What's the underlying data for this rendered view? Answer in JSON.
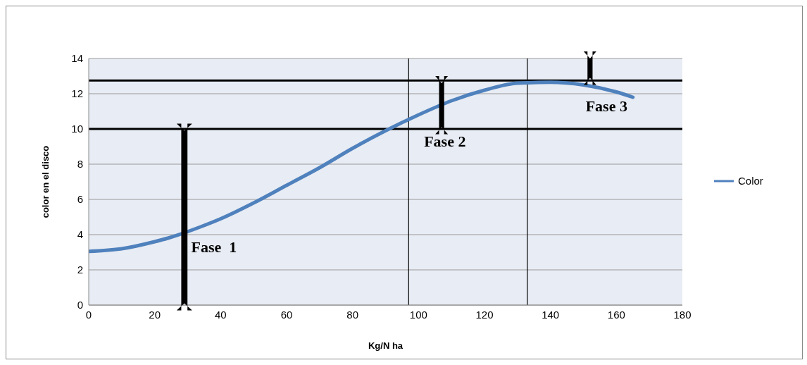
{
  "chart_data": {
    "type": "line",
    "xlabel": "Kg/N ha",
    "ylabel": "color en el disco",
    "x": [
      0,
      10,
      20,
      24,
      34,
      40,
      50,
      60,
      70,
      80,
      90,
      100,
      110,
      120,
      130,
      140,
      150,
      160,
      165
    ],
    "series": [
      {
        "name": "Color",
        "color": "#4f81bd",
        "values": [
          3.05,
          3.2,
          3.6,
          3.8,
          4.45,
          4.9,
          5.8,
          6.8,
          7.8,
          8.9,
          9.9,
          10.8,
          11.6,
          12.2,
          12.6,
          12.65,
          12.5,
          12.1,
          11.8
        ]
      }
    ],
    "xlim": [
      0,
      180
    ],
    "xticks": [
      0,
      20,
      40,
      60,
      80,
      100,
      120,
      140,
      160,
      180
    ],
    "ylim": [
      0,
      14
    ],
    "yticks": [
      0,
      2,
      4,
      6,
      8,
      10,
      12,
      14
    ],
    "grid": "y",
    "legend": "right",
    "marker": "none",
    "line_style": "solid",
    "ref_lines": [
      {
        "axis": "y",
        "value": 12.75,
        "color": "#000000"
      },
      {
        "axis": "y",
        "value": 10,
        "color": "#000000"
      },
      {
        "axis": "x",
        "value": 97,
        "color": "#000000"
      },
      {
        "axis": "x",
        "value": 133,
        "color": "#000000"
      }
    ],
    "annotations": [
      "Fase  1",
      "Fase 2",
      "Fase 3"
    ]
  }
}
